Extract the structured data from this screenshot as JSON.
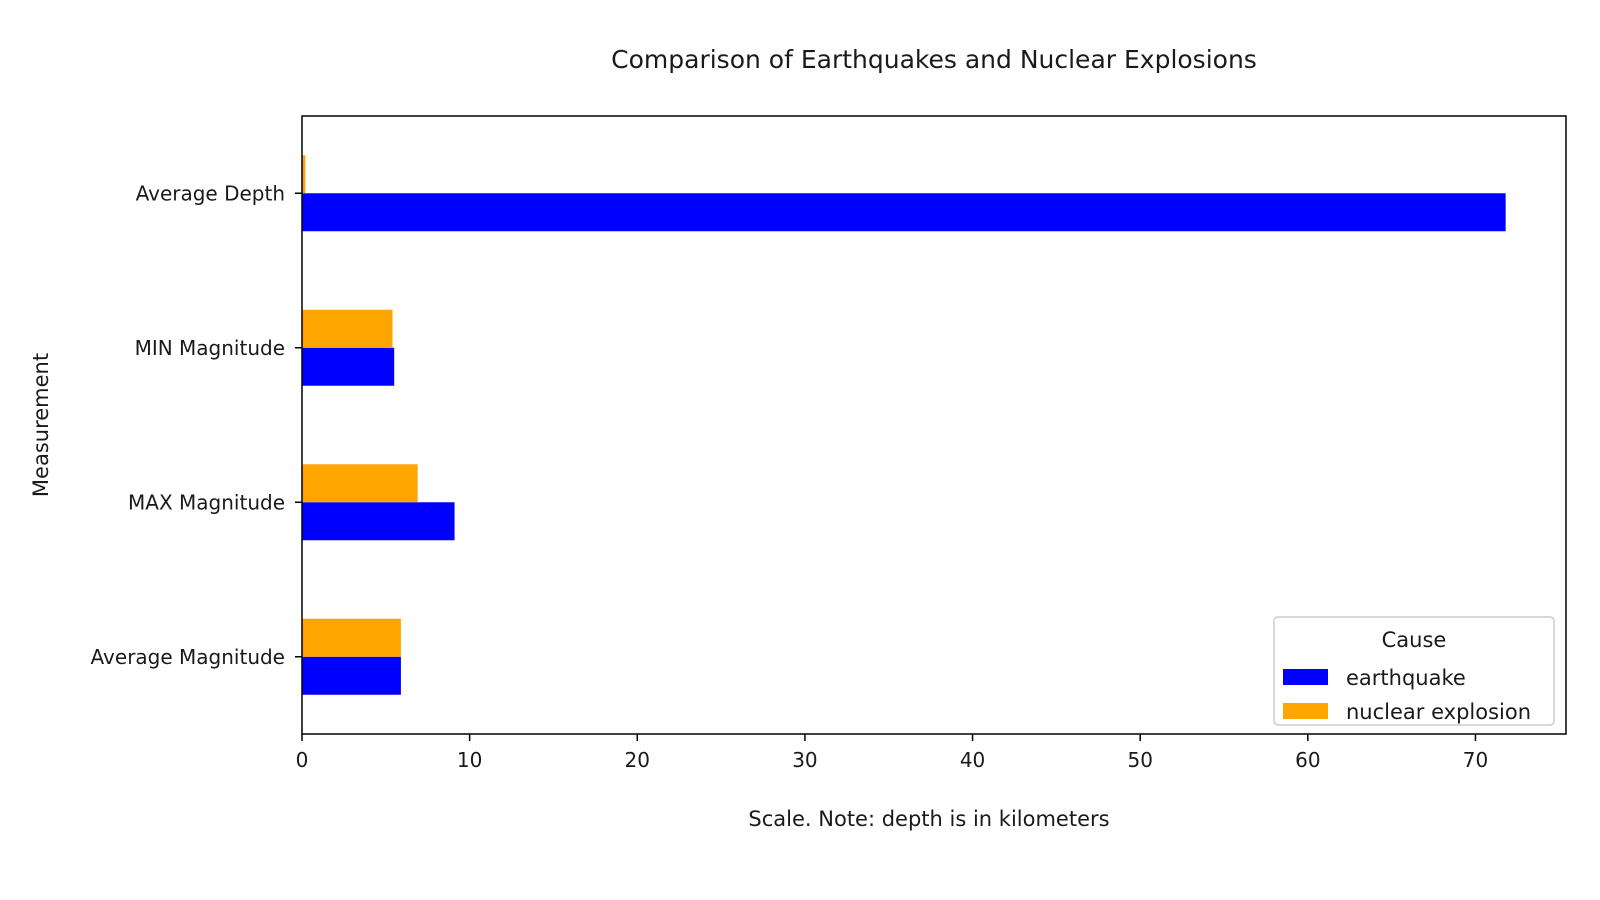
{
  "chart_data": {
    "type": "bar",
    "orientation": "horizontal",
    "title": "Comparison of Earthquakes and Nuclear Explosions",
    "xlabel": "Scale. Note: depth is in kilometers",
    "ylabel": "Measurement",
    "categories": [
      "Average Magnitude",
      "MAX Magnitude",
      "MIN Magnitude",
      "Average Depth"
    ],
    "series": [
      {
        "name": "earthquake",
        "color": "#0000ff",
        "values": [
          5.9,
          9.1,
          5.5,
          71.8
        ]
      },
      {
        "name": "nuclear explosion",
        "color": "#ffa500",
        "values": [
          5.9,
          6.9,
          5.4,
          0.2
        ]
      }
    ],
    "xlim": [
      0,
      75.4
    ],
    "xticks": [
      0,
      10,
      20,
      30,
      40,
      50,
      60,
      70
    ],
    "grid": false,
    "legend": {
      "title": "Cause",
      "placement": "lower-right"
    }
  }
}
